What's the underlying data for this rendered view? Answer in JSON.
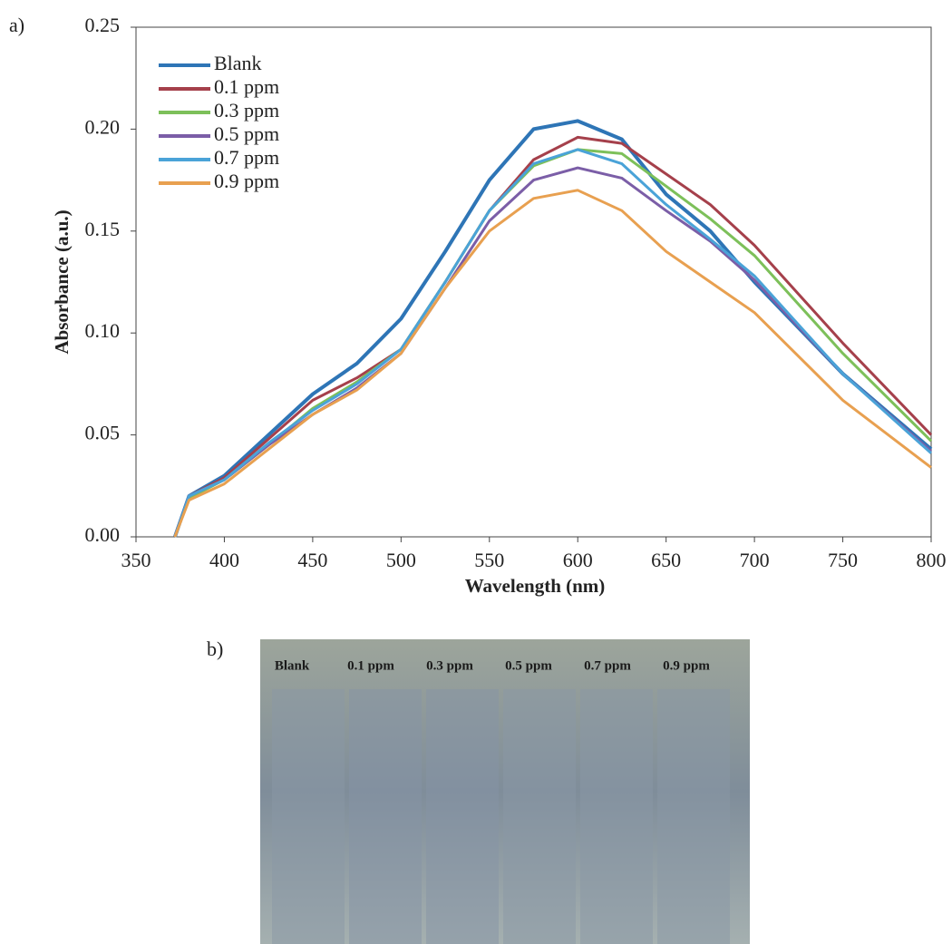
{
  "chart_data": {
    "type": "line",
    "panel_label": "a)",
    "xlabel": "Wavelength (nm)",
    "ylabel": "Absorbance (a.u.)",
    "x": [
      372,
      380,
      400,
      425,
      450,
      475,
      500,
      525,
      550,
      575,
      600,
      625,
      650,
      675,
      700,
      750,
      800
    ],
    "series": [
      {
        "name": "Blank",
        "color": "#2e75b6",
        "values": [
          0,
          0.02,
          0.03,
          0.05,
          0.07,
          0.085,
          0.107,
          0.14,
          0.175,
          0.2,
          0.204,
          0.195,
          0.168,
          0.15,
          0.125,
          0.08,
          0.043
        ]
      },
      {
        "name": "0.1 ppm",
        "color": "#a5404b",
        "values": [
          0,
          0.02,
          0.029,
          0.048,
          0.067,
          0.078,
          0.092,
          0.125,
          0.16,
          0.185,
          0.196,
          0.193,
          0.178,
          0.163,
          0.143,
          0.095,
          0.05
        ]
      },
      {
        "name": "0.3 ppm",
        "color": "#7dc05a",
        "values": [
          0,
          0.019,
          0.028,
          0.045,
          0.063,
          0.076,
          0.092,
          0.125,
          0.16,
          0.182,
          0.19,
          0.188,
          0.172,
          0.156,
          0.138,
          0.09,
          0.047
        ]
      },
      {
        "name": "0.5 ppm",
        "color": "#7b5ea7",
        "values": [
          0,
          0.02,
          0.028,
          0.045,
          0.06,
          0.073,
          0.09,
          0.122,
          0.155,
          0.175,
          0.181,
          0.176,
          0.16,
          0.145,
          0.126,
          0.08,
          0.042
        ]
      },
      {
        "name": "0.7 ppm",
        "color": "#4aa3d8",
        "values": [
          0,
          0.02,
          0.028,
          0.046,
          0.062,
          0.075,
          0.092,
          0.125,
          0.16,
          0.183,
          0.19,
          0.183,
          0.163,
          0.146,
          0.128,
          0.08,
          0.041
        ]
      },
      {
        "name": "0.9 ppm",
        "color": "#e8a050",
        "values": [
          0,
          0.018,
          0.026,
          0.043,
          0.06,
          0.072,
          0.09,
          0.122,
          0.15,
          0.166,
          0.17,
          0.16,
          0.14,
          0.125,
          0.11,
          0.067,
          0.034
        ]
      }
    ],
    "xlim": [
      350,
      800
    ],
    "xticks": [
      350,
      400,
      450,
      500,
      550,
      600,
      650,
      700,
      750,
      800
    ],
    "ylim": [
      0,
      0.25
    ],
    "yticks": [
      {
        "value": 0,
        "label": "0.00"
      },
      {
        "value": 0.05,
        "label": "0.05"
      },
      {
        "value": 0.1,
        "label": "0.10"
      },
      {
        "value": 0.15,
        "label": "0.15"
      },
      {
        "value": 0.2,
        "label": "0.20"
      },
      {
        "value": 0.25,
        "label": "0.25"
      }
    ],
    "legend": "upper-left"
  },
  "photo": {
    "panel_label": "b)",
    "vial_labels": [
      "Blank",
      "0.1 ppm",
      "0.3 ppm",
      "0.5 ppm",
      "0.7 ppm",
      "0.9 ppm"
    ]
  }
}
